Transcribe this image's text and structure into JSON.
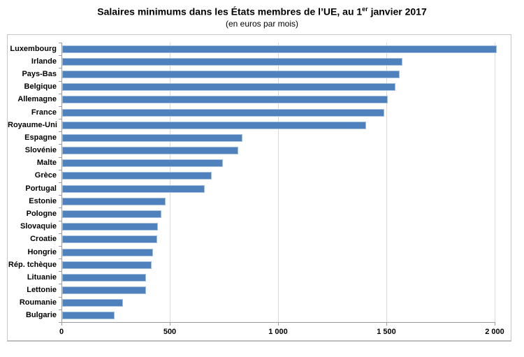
{
  "title": {
    "part1": "Salaires minimums dans les États membres de l’UE, au 1",
    "superscript": "er",
    "part2": " janvier 2017"
  },
  "subtitle": "(en euros par mois)",
  "chart_data": {
    "type": "bar",
    "orientation": "horizontal",
    "title": "Salaires minimums dans les États membres de l’UE, au 1er janvier 2017",
    "subtitle": "(en euros par mois)",
    "categories": [
      "Luxembourg",
      "Irlande",
      "Pays-Bas",
      "Belgique",
      "Allemagne",
      "France",
      "Royaume-Uni",
      "Espagne",
      "Slovénie",
      "Malte",
      "Grèce",
      "Portugal",
      "Estonie",
      "Pologne",
      "Slovaquie",
      "Croatie",
      "Hongrie",
      "Rép. tchèque",
      "Lituanie",
      "Lettonie",
      "Roumanie",
      "Bulgarie"
    ],
    "values": [
      1999,
      1563,
      1552,
      1532,
      1498,
      1480,
      1397,
      826,
      805,
      736,
      684,
      650,
      470,
      453,
      435,
      433,
      413,
      407,
      380,
      380,
      275,
      236
    ],
    "xlabel": "",
    "ylabel": "",
    "xlim": [
      0,
      2000
    ],
    "xticks": [
      0,
      500,
      1000,
      1500,
      2000
    ],
    "xtick_labels": [
      "0",
      "500",
      "1 000",
      "1 500",
      "2 000"
    ],
    "grid": true,
    "legend": false,
    "bar_color": "#4f81bd",
    "bar_border_color": "#a7c1e0",
    "gridline_color": "#d9d9d9",
    "axis_color": "#9b9b9b"
  }
}
